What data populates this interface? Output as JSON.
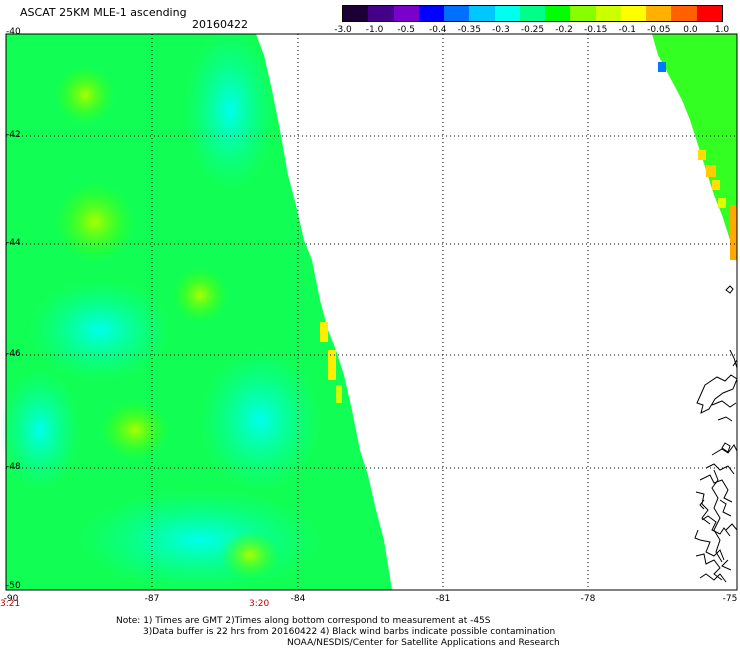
{
  "header": {
    "title": "ASCAT 25KM MLE-1 ascending",
    "date": "20160422"
  },
  "colorbar": {
    "labels": [
      "-3.0",
      "-1.0",
      "-0.5",
      "-0.4",
      "-0.35",
      "-0.3",
      "-0.25",
      "-0.2",
      "-0.15",
      "-0.1",
      "-0.05",
      "0.0",
      "1.0"
    ],
    "colors": [
      "#1a0033",
      "#440088",
      "#7a00cc",
      "#0000ff",
      "#0070ff",
      "#00c8ff",
      "#00ffee",
      "#00ff88",
      "#00ff00",
      "#88ff00",
      "#ccff00",
      "#ffff00",
      "#ffb000",
      "#ff6000",
      "#ff0000"
    ]
  },
  "axes": {
    "lat_labels": [
      "-40",
      "-42",
      "-44",
      "-46",
      "-48",
      "-50"
    ],
    "lon_labels": [
      "-90",
      "-87",
      "-84",
      "-81",
      "-78",
      "-75"
    ]
  },
  "times": [
    "3:21",
    "3:20"
  ],
  "notes": [
    "Note: 1) Times are GMT 2)Times along bottom correspond to measurement at -45S",
    "3)Data buffer is 22 hrs from 20160422 4) Black wind barbs indicate possible contamination",
    "NOAA/NESDIS/Center for Satellite Applications and Research"
  ]
}
